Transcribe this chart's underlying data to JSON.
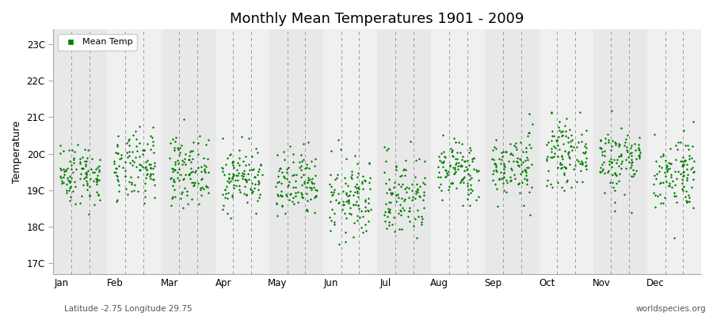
{
  "title": "Monthly Mean Temperatures 1901 - 2009",
  "ylabel": "Temperature",
  "xlabel_months": [
    "Jan",
    "Feb",
    "Mar",
    "Apr",
    "May",
    "Jun",
    "Jul",
    "Aug",
    "Sep",
    "Oct",
    "Nov",
    "Dec"
  ],
  "ytick_labels": [
    "17C",
    "18C",
    "19C",
    "20C",
    "21C",
    "22C",
    "23C"
  ],
  "ytick_values": [
    17,
    18,
    19,
    20,
    21,
    22,
    23
  ],
  "ylim": [
    16.7,
    23.4
  ],
  "point_color": "#008000",
  "band_color_odd": "#e8e8e8",
  "band_color_even": "#f0f0f0",
  "legend_label": "Mean Temp",
  "footer_left": "Latitude -2.75 Longitude 29.75",
  "footer_right": "worldspecies.org",
  "monthly_means": [
    19.45,
    19.6,
    19.55,
    19.35,
    19.1,
    18.75,
    18.85,
    19.55,
    19.65,
    20.0,
    19.85,
    19.5
  ],
  "monthly_stds": [
    0.42,
    0.48,
    0.45,
    0.42,
    0.48,
    0.55,
    0.58,
    0.42,
    0.45,
    0.42,
    0.48,
    0.52
  ],
  "n_years": 109,
  "random_seed": 42
}
